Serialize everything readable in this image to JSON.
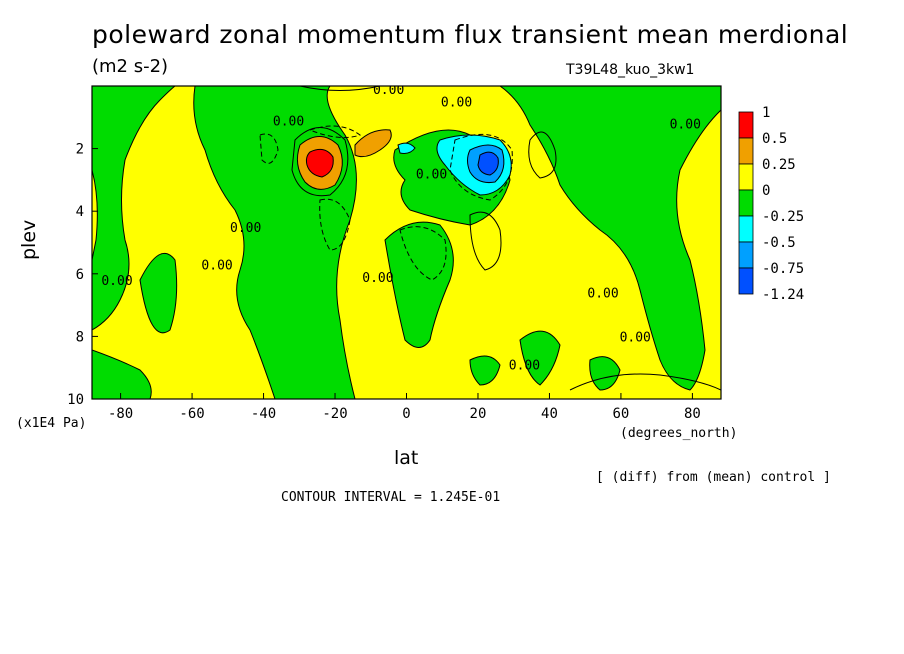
{
  "title": "poleward zonal momentum flux transient mean merdional",
  "units": "(m2 s-2)",
  "run_label": "T39L48_kuo_3kw1",
  "y_scale_label": "(x1E4 Pa)",
  "x_units_label": "(degrees_north)",
  "xlabel": "lat",
  "ylabel": "plev",
  "diff_note": "[ (diff) from (mean) control ]",
  "contour_interval_label": "CONTOUR INTERVAL = ",
  "contour_interval_value": "1.245E-01",
  "chart_data": {
    "type": "heatmap",
    "title": "poleward zonal momentum flux transient mean merdional",
    "xlabel": "lat",
    "ylabel": "plev",
    "xlim": [
      -88,
      88
    ],
    "ylim": [
      10,
      0
    ],
    "x_ticks": [
      -80,
      -60,
      -40,
      -20,
      0,
      20,
      40,
      60,
      80
    ],
    "y_ticks": [
      2,
      4,
      6,
      8,
      10
    ],
    "grid": false,
    "legend": "right",
    "colorbar": {
      "labels": [
        "1",
        "0.5",
        "0.25",
        "0",
        "-0.25",
        "-0.5",
        "-0.75",
        "-1.24"
      ],
      "colors": [
        "#ff0000",
        "#f0a000",
        "#ffff00",
        "#00dc00",
        "#00ffff",
        "#00a0ff",
        "#0050ff"
      ]
    },
    "contour_labels": [
      {
        "text": "0.00",
        "x": -5,
        "y": 0.1
      },
      {
        "text": "0.00",
        "x": 14,
        "y": 0.5
      },
      {
        "text": "0.00",
        "x": -33,
        "y": 1.1
      },
      {
        "text": "0.00",
        "x": 78,
        "y": 1.2
      },
      {
        "text": "0.00",
        "x": 7,
        "y": 2.8
      },
      {
        "text": "0.00",
        "x": -45,
        "y": 4.5
      },
      {
        "text": "0.00",
        "x": -53,
        "y": 5.7
      },
      {
        "text": "0.00",
        "x": -8,
        "y": 6.1
      },
      {
        "text": "0.00",
        "x": -81,
        "y": 6.2
      },
      {
        "text": "0.00",
        "x": 55,
        "y": 6.6
      },
      {
        "text": "0.00",
        "x": 64,
        "y": 8.0
      },
      {
        "text": "0.00",
        "x": 33,
        "y": 8.9
      }
    ]
  }
}
